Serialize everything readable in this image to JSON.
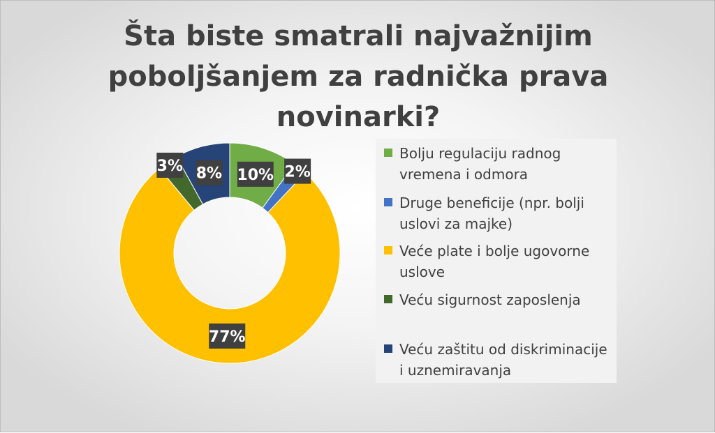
{
  "chart_data": {
    "type": "pie",
    "subtype": "doughnut",
    "title": "Šta biste smatrali najvažnijim poboljšanjem za radnička prava novinarki?",
    "title_lines": [
      "Šta biste smatrali najvažnijim",
      "poboljšanjem za radnička prava",
      "novinarki?"
    ],
    "legend_position": "right",
    "series": [
      {
        "name": "Bolju regulaciju radnog vremena i odmora",
        "legend_lines": [
          "Bolju regulaciju radnog",
          "vremena i odmora"
        ],
        "value": 10,
        "label": "10%",
        "color": "#70ad47"
      },
      {
        "name": "Druge beneficije (npr. bolji uslovi za majke)",
        "legend_lines": [
          "Druge beneficije (npr. bolji",
          "uslovi za majke)"
        ],
        "value": 2,
        "label": "2%",
        "color": "#4472c4"
      },
      {
        "name": "Veće plate i bolje ugovorne uslove",
        "legend_lines": [
          "Veće plate i bolje ugovorne",
          "uslove"
        ],
        "value": 77,
        "label": "77%",
        "color": "#ffc000"
      },
      {
        "name": "Veću sigurnost zaposlenja",
        "legend_lines": [
          "Veću sigurnost zaposlenja"
        ],
        "value": 3,
        "label": "3%",
        "color": "#43682b"
      },
      {
        "name": "Veću zaštitu od diskriminacije i uznemiravanja",
        "legend_lines": [
          "Veću zaštitu od diskriminacije",
          "i uznemiravanja"
        ],
        "value": 8,
        "label": "8%",
        "color": "#264478"
      }
    ]
  }
}
